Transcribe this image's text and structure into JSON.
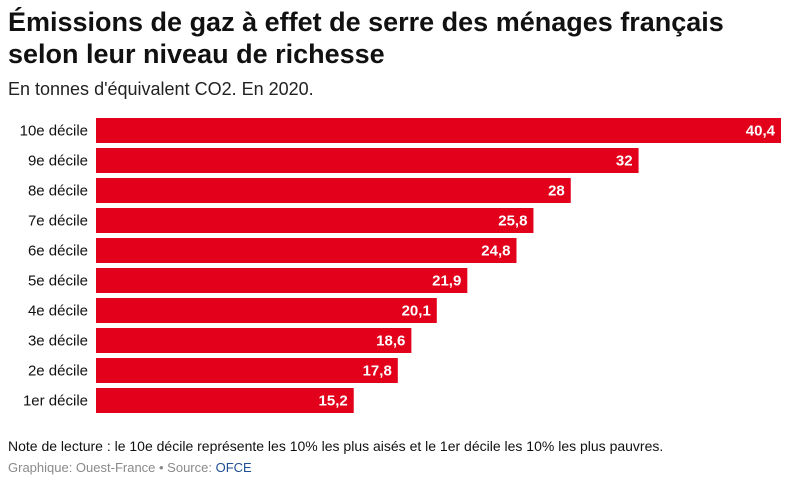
{
  "header": {
    "title_line1": "Émissions de gaz à effet de serre des ménages français",
    "title_line2": "selon leur niveau de richesse",
    "subtitle": "En tonnes d'équivalent CO2. En 2020."
  },
  "footer": {
    "note": "Note de lecture : le 10e décile représente les 10% les plus aisés et le 1er décile les 10% les plus pauvres.",
    "credit_prefix": "Graphique: Ouest-France • Source: ",
    "source_name": "OFCE"
  },
  "colors": {
    "bar": "#e2001a",
    "source_link": "#1d4f91"
  },
  "chart_data": {
    "type": "bar",
    "orientation": "horizontal",
    "categories": [
      "10e décile",
      "9e décile",
      "8e décile",
      "7e décile",
      "6e décile",
      "5e décile",
      "4e décile",
      "3e décile",
      "2e décile",
      "1er décile"
    ],
    "values": [
      40.4,
      32,
      28,
      25.8,
      24.8,
      21.9,
      20.1,
      18.6,
      17.8,
      15.2
    ],
    "value_labels": [
      "40,4",
      "32",
      "28",
      "25,8",
      "24,8",
      "21,9",
      "20,1",
      "18,6",
      "17,8",
      "15,2"
    ],
    "xlim": [
      0,
      40.4
    ],
    "grid": false,
    "legend": "none"
  }
}
